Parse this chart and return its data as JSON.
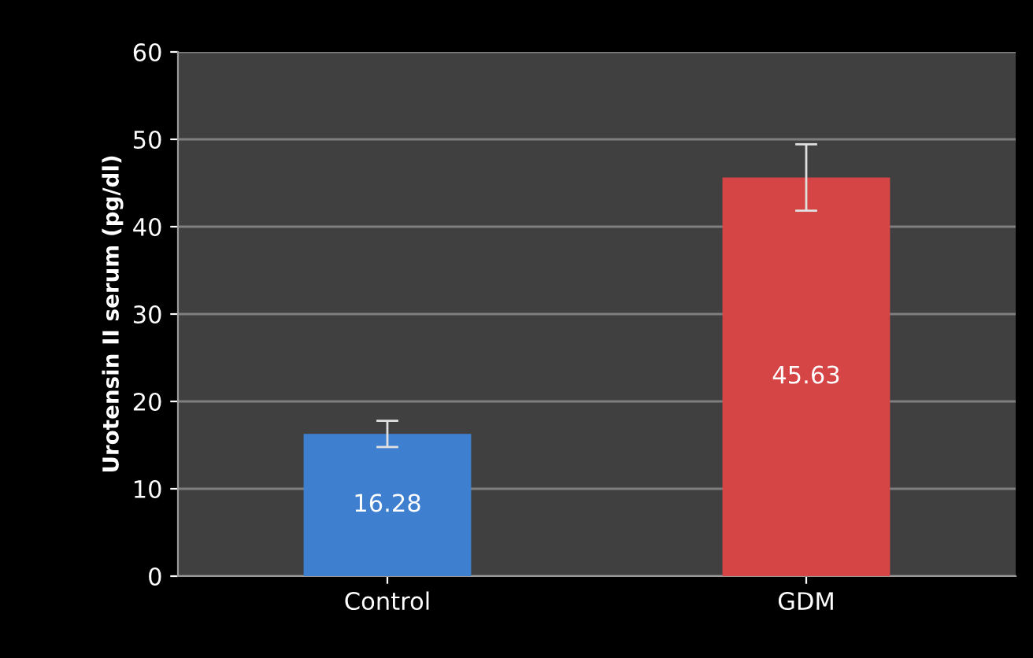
{
  "chart_data": {
    "type": "bar",
    "ylabel": "Urotensin II serum (pg/dl)",
    "categories": [
      "Control",
      "GDM"
    ],
    "values": [
      16.28,
      45.63
    ],
    "colors": [
      "#3f7fd0",
      "#d64545"
    ],
    "errors": [
      1.5,
      3.8
    ],
    "ylim": [
      0,
      60
    ],
    "yticks": [
      0,
      10,
      20,
      30,
      40,
      50,
      60
    ],
    "grid": "y",
    "data_labels": true
  }
}
